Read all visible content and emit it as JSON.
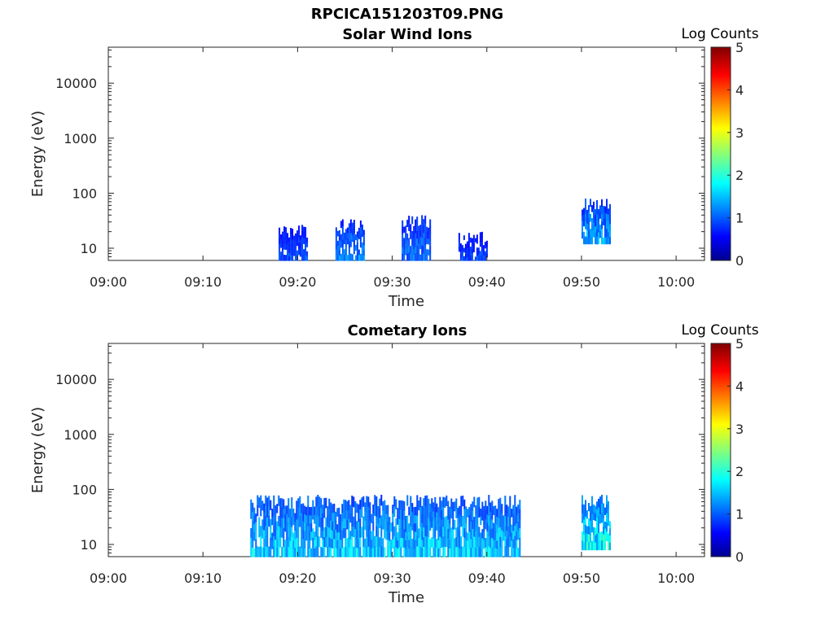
{
  "figure_title": "RPCICA151203T09.PNG",
  "chart_data": [
    {
      "type": "heatmap",
      "title": "Solar Wind Ions",
      "xlabel": "Time",
      "ylabel": "Energy (eV)",
      "x_ticks": [
        "09:00",
        "09:10",
        "09:20",
        "09:30",
        "09:40",
        "09:50",
        "10:00"
      ],
      "y_ticks": [
        "10",
        "100",
        "1000",
        "10000"
      ],
      "y_scale": "log",
      "xlim": [
        "09:00",
        "10:03"
      ],
      "ylim": [
        6,
        45000
      ],
      "colorbar": {
        "label": "Log Counts",
        "ticks": [
          "0",
          "1",
          "2",
          "3",
          "4",
          "5"
        ],
        "range": [
          0,
          5
        ],
        "colormap": "jet"
      },
      "blocks": [
        {
          "t_start": "09:18",
          "t_end": "09:21",
          "e_low": 6,
          "e_high": 28,
          "level": 0.6
        },
        {
          "t_start": "09:24",
          "t_end": "09:27",
          "e_low": 6,
          "e_high": 35,
          "level": 0.9
        },
        {
          "t_start": "09:31",
          "t_end": "09:34",
          "e_low": 6,
          "e_high": 40,
          "level": 0.8
        },
        {
          "t_start": "09:37",
          "t_end": "09:40",
          "e_low": 6,
          "e_high": 20,
          "level": 0.6
        },
        {
          "t_start": "09:50",
          "t_end": "09:53",
          "e_low": 12,
          "e_high": 80,
          "level": 1.1
        }
      ]
    },
    {
      "type": "heatmap",
      "title": "Cometary Ions",
      "xlabel": "Time",
      "ylabel": "Energy (eV)",
      "x_ticks": [
        "09:00",
        "09:10",
        "09:20",
        "09:30",
        "09:40",
        "09:50",
        "10:00"
      ],
      "y_ticks": [
        "10",
        "100",
        "1000",
        "10000"
      ],
      "y_scale": "log",
      "xlim": [
        "09:00",
        "10:03"
      ],
      "ylim": [
        6,
        45000
      ],
      "colorbar": {
        "label": "Log Counts",
        "ticks": [
          "0",
          "1",
          "2",
          "3",
          "4",
          "5"
        ],
        "range": [
          0,
          5
        ],
        "colormap": "jet"
      },
      "blocks": [
        {
          "t_start": "09:15",
          "t_end": "09:43.5",
          "e_low": 6,
          "e_high": 80,
          "level": 1.3
        },
        {
          "t_start": "09:50",
          "t_end": "09:53",
          "e_low": 8,
          "e_high": 80,
          "level": 1.6
        }
      ]
    }
  ]
}
